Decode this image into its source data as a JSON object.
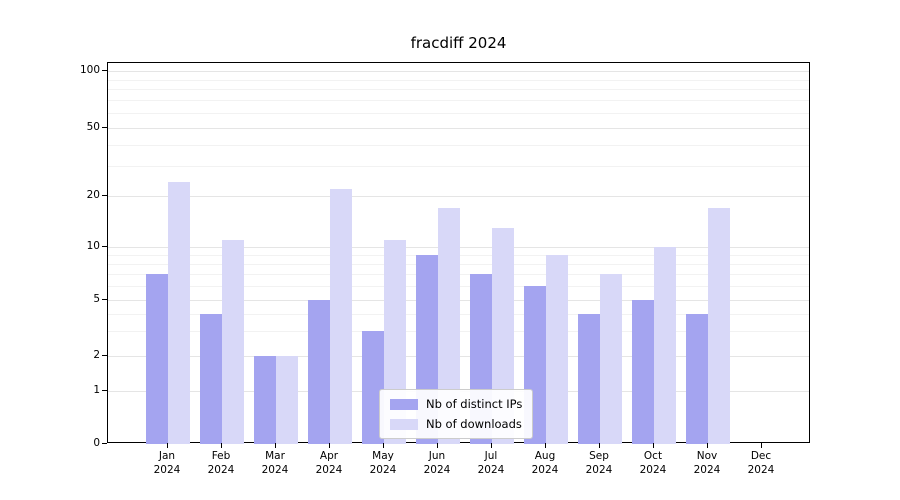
{
  "chart_data": {
    "type": "bar",
    "title": "fracdiff 2024",
    "categories": [
      "Jan",
      "Feb",
      "Mar",
      "Apr",
      "May",
      "Jun",
      "Jul",
      "Aug",
      "Sep",
      "Oct",
      "Nov",
      "Dec"
    ],
    "year_label": "2024",
    "series": [
      {
        "name": "Nb of distinct IPs",
        "color": "#a4a4f0",
        "values": [
          7,
          4,
          2,
          5,
          3,
          9,
          7,
          6,
          4,
          5,
          4,
          0
        ]
      },
      {
        "name": "Nb of downloads",
        "color": "#d8d8f8",
        "values": [
          24,
          11,
          2,
          22,
          11,
          17,
          13,
          9,
          7,
          10,
          17,
          0
        ]
      }
    ],
    "yscale": "symlog",
    "ylim": [
      0,
      100
    ],
    "yticks": [
      0,
      1,
      2,
      5,
      10,
      20,
      50,
      100
    ],
    "minor_yticks": [
      3,
      4,
      6,
      7,
      8,
      9,
      30,
      40,
      60,
      70,
      80,
      90
    ],
    "grid": true,
    "legend_position": "lower center inside plot"
  }
}
